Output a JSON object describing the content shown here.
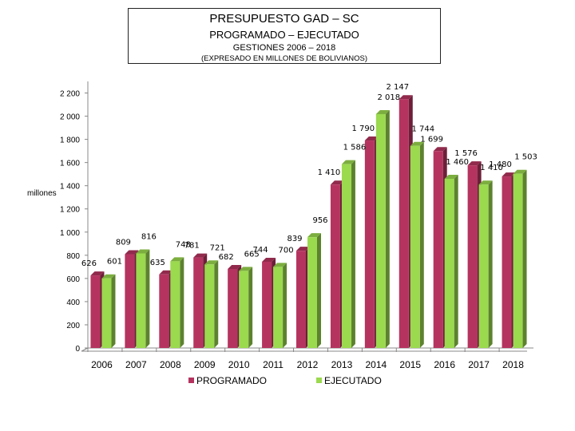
{
  "header": {
    "title": "PRESUPUESTO GAD – SC",
    "subtitle": "PROGRAMADO – EJECUTADO",
    "period": "GESTIONES 2006 – 2018",
    "note": "(EXPRESADO EN MILLONES DE BOLIVIANOS)"
  },
  "chart_data": {
    "type": "bar",
    "title": "PRESUPUESTO GAD – SC",
    "ylabel": "millones",
    "ylim": [
      0,
      2300
    ],
    "yticks": [
      0,
      200,
      400,
      600,
      800,
      1000,
      1200,
      1400,
      1600,
      1800,
      2000,
      2200
    ],
    "ytick_labels": [
      "0",
      "200",
      "400",
      "600",
      "800",
      "1 000",
      "1 200",
      "1 400",
      "1 600",
      "1 800",
      "2 000",
      "2 200"
    ],
    "grid": false,
    "legend_position": "bottom",
    "categories": [
      "2006",
      "2007",
      "2008",
      "2009",
      "2010",
      "2011",
      "2012",
      "2013",
      "2014",
      "2015",
      "2016",
      "2017",
      "2018"
    ],
    "series": [
      {
        "name": "PROGRAMADO",
        "color": "#b5345f",
        "values": [
          626,
          809,
          635,
          781,
          682,
          744,
          839,
          1410,
          1790,
          2147,
          1699,
          1576,
          1480
        ],
        "labels": [
          "626",
          "809",
          "635",
          "781",
          "682",
          "744",
          "839",
          "1 410",
          "1 790",
          "2 147",
          "1 699",
          "1 576",
          "1 480"
        ]
      },
      {
        "name": "EJECUTADO",
        "color": "#9bd94f",
        "values": [
          601,
          816,
          748,
          721,
          665,
          700,
          956,
          1586,
          2018,
          1744,
          1460,
          1410,
          1503
        ],
        "labels": [
          "601",
          "816",
          "748",
          "721",
          "665",
          "700",
          "956",
          "1 586",
          "2 018",
          "1 744",
          "1 460",
          "1 410",
          "1 503"
        ]
      }
    ]
  }
}
